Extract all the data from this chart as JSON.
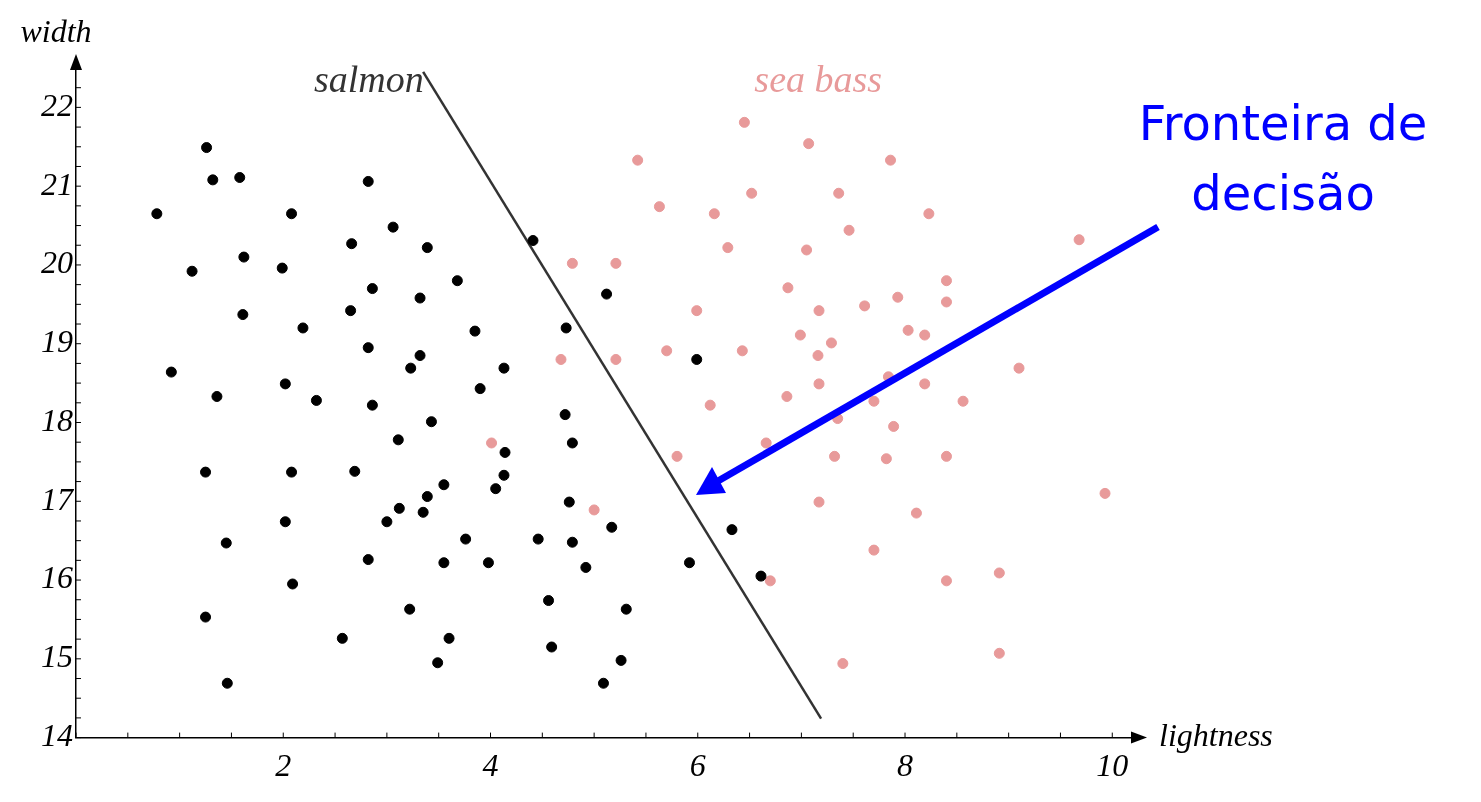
{
  "chart_data": {
    "type": "scatter",
    "xlabel": "lightness",
    "ylabel": "width",
    "xlim": [
      0,
      10.2
    ],
    "ylim": [
      14,
      22.5
    ],
    "xticks": [
      2,
      4,
      6,
      8,
      10
    ],
    "yticks": [
      14,
      15,
      16,
      17,
      18,
      19,
      20,
      21,
      22
    ],
    "grid": false,
    "legend": false,
    "marker": "circle",
    "annotations": [
      "Fronteira de decisão"
    ],
    "series": [
      {
        "name": "salmon",
        "color": "#000000",
        "x": [
          1.26,
          1.32,
          1.58,
          0.78,
          2.08,
          2.82,
          1.12,
          1.62,
          1.99,
          2.66,
          3.06,
          3.39,
          3.68,
          4.41,
          5.12,
          1.61,
          2.19,
          2.65,
          2.86,
          3.32,
          3.85,
          4.73,
          0.92,
          1.36,
          2.02,
          2.32,
          2.82,
          2.86,
          3.23,
          3.32,
          3.9,
          4.13,
          5.99,
          4.72,
          3.11,
          3.43,
          4.14,
          4.79,
          1.25,
          2.08,
          2.69,
          3.55,
          3.39,
          4.13,
          4.05,
          4.76,
          3.0,
          3.12,
          3.35,
          2.02,
          1.45,
          2.82,
          3.55,
          3.76,
          3.98,
          4.46,
          4.79,
          4.92,
          5.17,
          5.92,
          6.33,
          6.61,
          2.09,
          1.25,
          3.22,
          4.56,
          5.31,
          2.57,
          3.6,
          4.59,
          3.49,
          5.26,
          5.09,
          1.46
        ],
        "values": [
          21.49,
          21.08,
          21.11,
          20.65,
          20.65,
          21.06,
          19.92,
          20.1,
          19.96,
          20.27,
          20.48,
          20.22,
          19.8,
          20.31,
          19.63,
          19.37,
          19.2,
          19.42,
          19.7,
          19.58,
          19.16,
          19.2,
          18.64,
          18.33,
          18.49,
          18.28,
          18.95,
          18.22,
          18.69,
          18.85,
          18.43,
          18.69,
          18.8,
          18.1,
          17.78,
          18.01,
          17.62,
          17.74,
          17.37,
          17.37,
          17.38,
          17.21,
          17.06,
          17.33,
          17.16,
          16.99,
          16.74,
          16.91,
          16.86,
          16.74,
          16.47,
          16.26,
          16.22,
          16.52,
          16.22,
          16.52,
          16.48,
          16.16,
          16.67,
          16.22,
          16.64,
          16.05,
          15.95,
          15.53,
          15.63,
          15.74,
          15.63,
          15.26,
          15.26,
          15.15,
          14.95,
          14.98,
          14.69,
          14.69
        ]
      },
      {
        "name": "sea bass",
        "color": "#e89a9a",
        "x": [
          6.45,
          5.42,
          7.07,
          7.86,
          5.63,
          6.52,
          7.36,
          6.16,
          7.46,
          8.23,
          6.29,
          7.05,
          4.79,
          5.21,
          9.68,
          8.4,
          6.87,
          5.99,
          7.17,
          7.61,
          7.93,
          8.4,
          6.99,
          7.29,
          7.16,
          8.03,
          8.19,
          4.68,
          5.21,
          5.7,
          6.43,
          9.1,
          7.84,
          7.17,
          8.19,
          6.86,
          6.12,
          7.7,
          8.56,
          7.35,
          7.89,
          4.01,
          5.8,
          6.66,
          7.32,
          7.82,
          8.4,
          9.93,
          5.0,
          7.17,
          8.11,
          7.7,
          6.7,
          8.4,
          8.91,
          7.4,
          8.91
        ],
        "values": [
          21.81,
          21.33,
          21.54,
          21.33,
          20.74,
          20.91,
          20.91,
          20.65,
          20.44,
          20.65,
          20.22,
          20.19,
          20.02,
          20.02,
          20.32,
          19.8,
          19.71,
          19.42,
          19.42,
          19.48,
          19.59,
          19.53,
          19.11,
          19.01,
          18.85,
          19.17,
          19.11,
          18.8,
          18.8,
          18.91,
          18.91,
          18.69,
          18.58,
          18.49,
          18.49,
          18.33,
          18.22,
          18.27,
          18.27,
          18.05,
          17.95,
          17.74,
          17.57,
          17.74,
          17.57,
          17.54,
          17.57,
          17.1,
          16.89,
          16.99,
          16.85,
          16.38,
          15.99,
          15.99,
          16.09,
          14.94,
          15.07
        ]
      },
      {
        "type": "line",
        "color": "#333333",
        "marker": "none",
        "x": [
          3.35,
          7.19
        ],
        "values": [
          22.45,
          14.24
        ]
      }
    ]
  }
}
